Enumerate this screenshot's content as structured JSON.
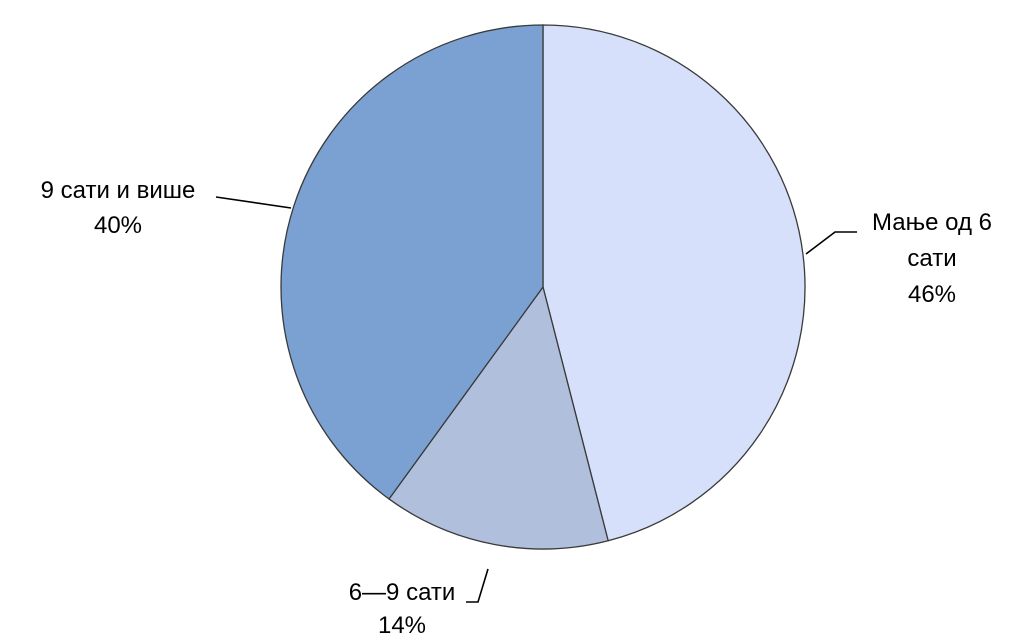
{
  "chart_data": {
    "type": "pie",
    "slices": [
      {
        "label_lines": [
          "Мање од 6",
          "сати"
        ],
        "value": 46,
        "value_label": "46%",
        "color": "#d6e0fb"
      },
      {
        "label_lines": [
          "6—9 сати"
        ],
        "value": 14,
        "value_label": "14%",
        "color": "#b0bfdc"
      },
      {
        "label_lines": [
          "9 сати и више"
        ],
        "value": 40,
        "value_label": "40%",
        "color": "#7aa1d2"
      }
    ],
    "start": "top",
    "direction": "clockwise"
  }
}
